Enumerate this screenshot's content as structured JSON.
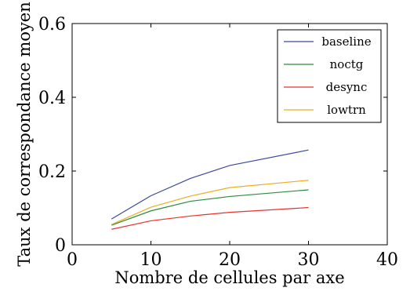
{
  "chart_data": {
    "type": "line",
    "title": "",
    "xlabel": "Nombre de cellules par axe",
    "ylabel": "Taux de correspondance moyen",
    "xlim": [
      0,
      40
    ],
    "ylim": [
      0,
      0.6
    ],
    "x_ticks": [
      0,
      10,
      20,
      30,
      40
    ],
    "x_tick_labels": [
      "0",
      "10",
      "20",
      "30",
      "40"
    ],
    "y_ticks": [
      0,
      0.2,
      0.4,
      0.6
    ],
    "y_tick_labels": [
      "0",
      "0.2",
      "0.4",
      "0.6"
    ],
    "grid": false,
    "legend_position": "top-right",
    "x": [
      5,
      10,
      15,
      20,
      30
    ],
    "series": [
      {
        "name": "baseline",
        "color": "#3d4a9a",
        "values": [
          0.07,
          0.133,
          0.18,
          0.215,
          0.257
        ]
      },
      {
        "name": "noctg",
        "color": "#2e8b3e",
        "values": [
          0.053,
          0.092,
          0.118,
          0.131,
          0.149
        ]
      },
      {
        "name": "desync",
        "color": "#e8322b",
        "values": [
          0.042,
          0.065,
          0.078,
          0.088,
          0.101
        ]
      },
      {
        "name": "lowtrn",
        "color": "#e8b020",
        "values": [
          0.055,
          0.102,
          0.132,
          0.155,
          0.175
        ]
      }
    ]
  }
}
